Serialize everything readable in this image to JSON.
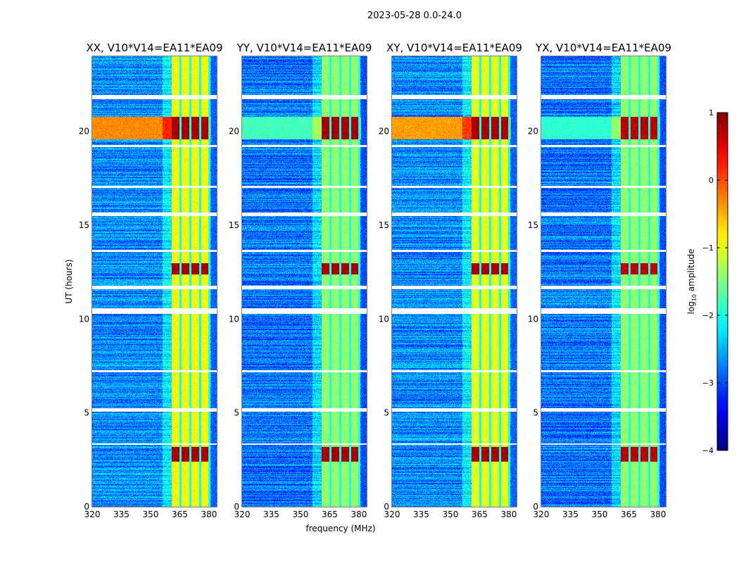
{
  "chart_data": {
    "type": "heatmap",
    "suptitle": "2023-05-28 0.0-24.0",
    "xlabel": "frequency (MHz)",
    "ylabel": "UT (hours)",
    "xlim": [
      320,
      384
    ],
    "ylim": [
      0,
      24
    ],
    "xticks": [
      320,
      335,
      350,
      365,
      380
    ],
    "yticks": [
      0,
      5,
      10,
      15,
      20
    ],
    "colorbar": {
      "label": "log10 amplitude",
      "label_main": "log",
      "label_sub": "10",
      "label_rest": " amplitude",
      "range": [
        -4,
        1
      ],
      "ticks": [
        -4,
        -3,
        -2,
        -1,
        0,
        1
      ],
      "tick_labels": [
        "−4",
        "−3",
        "−2",
        "−1",
        "0",
        "1"
      ],
      "colormap": "jet"
    },
    "rfi_band_mhz": [
      360.5,
      380.5
    ],
    "band_dividers_mhz": [
      365.2,
      370.3,
      375.3,
      380.0
    ],
    "flagged_hours": [
      [
        21.75,
        21.95
      ],
      [
        15.5,
        15.7
      ],
      [
        11.6,
        11.8
      ],
      [
        10.3,
        10.6
      ],
      [
        5.1,
        5.25
      ],
      [
        3.3,
        3.4
      ],
      [
        19.2,
        19.3
      ],
      [
        17.0,
        17.1
      ],
      [
        13.6,
        13.7
      ],
      [
        7.2,
        7.3
      ]
    ],
    "bright_events_hours": [
      [
        19.6,
        20.8
      ],
      [
        12.4,
        13.0
      ],
      [
        2.4,
        3.2
      ]
    ],
    "panels": [
      {
        "title": "XX, V10*V14=EA11*EA09",
        "background_level": -2.7,
        "band_level": -0.9,
        "event_level": 0.8,
        "broadband_event_level": -0.3
      },
      {
        "title": "YY, V10*V14=EA11*EA09",
        "background_level": -2.8,
        "band_level": -1.4,
        "event_level": 0.8,
        "broadband_event_level": -1.8
      },
      {
        "title": "XY, V10*V14=EA11*EA09",
        "background_level": -2.7,
        "band_level": -1.0,
        "event_level": 0.8,
        "broadband_event_level": -0.4
      },
      {
        "title": "YX, V10*V14=EA11*EA09",
        "background_level": -2.8,
        "band_level": -1.4,
        "event_level": 0.7,
        "broadband_event_level": -1.9
      }
    ]
  }
}
